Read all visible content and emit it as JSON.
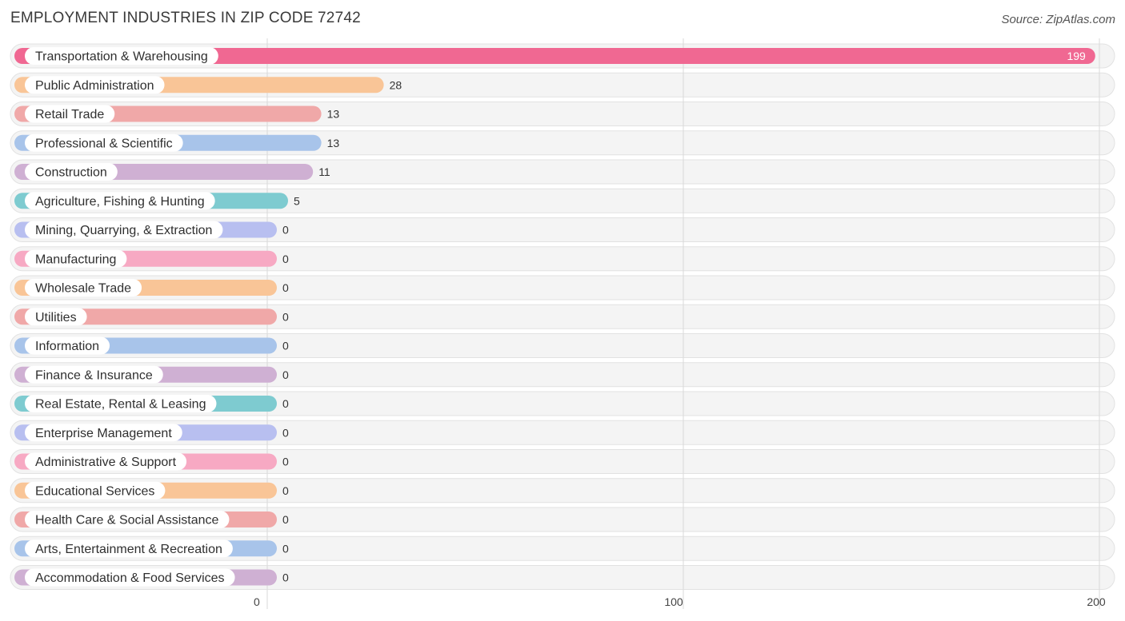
{
  "header": {
    "title": "EMPLOYMENT INDUSTRIES IN ZIP CODE 72742",
    "source": "Source: ZipAtlas.com"
  },
  "chart_data": {
    "type": "bar",
    "orientation": "horizontal",
    "title": "EMPLOYMENT INDUSTRIES IN ZIP CODE 72742",
    "xlim": [
      0,
      200
    ],
    "ticks": [
      0,
      100,
      200
    ],
    "grid": true,
    "categories": [
      "Transportation & Warehousing",
      "Public Administration",
      "Retail Trade",
      "Professional & Scientific",
      "Construction",
      "Agriculture, Fishing & Hunting",
      "Mining, Quarrying, & Extraction",
      "Manufacturing",
      "Wholesale Trade",
      "Utilities",
      "Information",
      "Finance & Insurance",
      "Real Estate, Rental & Leasing",
      "Enterprise Management",
      "Administrative & Support",
      "Educational Services",
      "Health Care & Social Assistance",
      "Arts, Entertainment & Recreation",
      "Accommodation & Food Services"
    ],
    "values": [
      199,
      28,
      13,
      13,
      11,
      5,
      0,
      0,
      0,
      0,
      0,
      0,
      0,
      0,
      0,
      0,
      0,
      0,
      0
    ],
    "colors": [
      "#f06892",
      "#f9c597",
      "#f0a8a8",
      "#a8c4ea",
      "#cfb0d3",
      "#7ecbd0",
      "#b8bff0",
      "#f7a9c3",
      "#f9c597",
      "#f0a8a8",
      "#a8c4ea",
      "#cfb0d3",
      "#7ecbd0",
      "#b8bff0",
      "#f7a9c3",
      "#f9c597",
      "#f0a8a8",
      "#a8c4ea",
      "#cfb0d3"
    ]
  }
}
